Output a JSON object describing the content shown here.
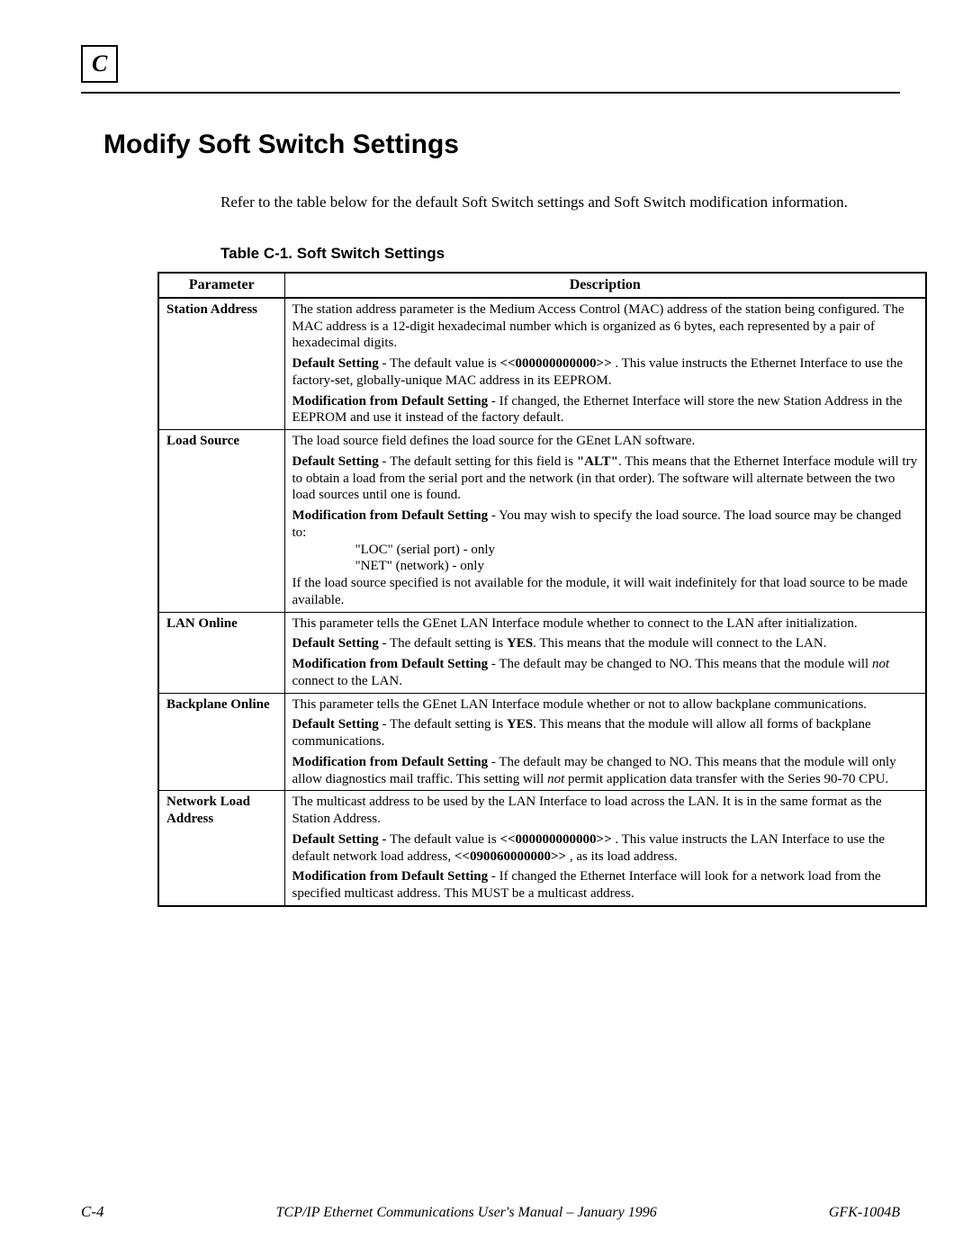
{
  "section_marker": "C",
  "main_title": "Modify Soft Switch Settings",
  "intro_text": "Refer to the table below for the default Soft Switch settings and Soft Switch modification information.",
  "table_caption": "Table C-1.  Soft Switch Settings",
  "table": {
    "columns": [
      "Parameter",
      "Description"
    ],
    "rows": [
      {
        "param": "Station Address",
        "desc": [
          {
            "plain": "The station address parameter is the Medium Access Control (MAC) address of the station being configured.  The MAC address is a 12-digit hexadecimal number which is organized as 6 bytes, each represented by a pair of hexadecimal digits."
          },
          {
            "lead_bold": "Default Setting",
            "rest": " - The default value is ",
            "code": "<<000000000000>>",
            "tail": " .  This value instructs the Ethernet Interface to use the factory-set, globally-unique MAC address in its EEPROM."
          },
          {
            "lead_bold": "Modification from Default Setting",
            "rest": " - If changed, the Ethernet Interface will store the new Station Address in the EEPROM and use it instead of the factory default."
          }
        ]
      },
      {
        "param": "Load Source",
        "desc": [
          {
            "plain": "The load source field defines the load source for the GEnet LAN software."
          },
          {
            "lead_bold": "Default Setting",
            "rest": " - The default setting for this field is ",
            "bold_quote": "\"ALT\"",
            "tail": ".  This means that the Ethernet Interface module will try to obtain a load from the serial port and the network (in that order).  The software will alternate between the two load sources until one is found."
          },
          {
            "lead_bold": "Modification from Default Setting",
            "rest": " - You may wish to specify the load source.  The load source may be changed to:",
            "list": [
              "\"LOC\" (serial port) - only",
              "\"NET\" (network) - only"
            ],
            "after_list": "If the load source specified is not available for the module, it will wait indefinitely for that load source to be made available."
          }
        ]
      },
      {
        "param": "LAN Online",
        "desc": [
          {
            "plain": "This parameter tells the GEnet LAN Interface module whether to connect to the LAN after initialization."
          },
          {
            "lead_bold": "Default Setting",
            "rest": " - The default setting is ",
            "bold2": "YES",
            "tail": ".  This means that the module will connect to the LAN."
          },
          {
            "lead_bold": "Modification from Default Setting",
            "rest": " - The default may be changed to NO.  This means that the module will ",
            "italic_word": "not",
            "tail": " connect to the LAN."
          }
        ]
      },
      {
        "param": "Backplane Online",
        "desc": [
          {
            "plain": "This parameter tells the GEnet LAN Interface module whether or not to allow backplane communications."
          },
          {
            "lead_bold": "Default Setting",
            "rest": " - The default setting is ",
            "bold2": "YES",
            "tail": ".  This means that the module will allow all forms of backplane communications."
          },
          {
            "lead_bold": "Modification from Default Setting",
            "rest": " - The default may be changed to NO.  This means that the module will only allow diagnostics mail traffic.  This setting will ",
            "italic_word": "not",
            "tail": " permit application data transfer with the Series 90-70 CPU."
          }
        ]
      },
      {
        "param": "Network Load Address",
        "desc": [
          {
            "plain": "The multicast address to be used by the LAN Interface to load across the LAN.  It is in the same format as the Station Address."
          },
          {
            "lead_bold": "Default Setting",
            "rest": " - The default value is ",
            "code": "<<000000000000>>",
            "tail1": "  .  This value instructs the LAN Interface to use the default network load address, ",
            "code2": "<<090060000000>>",
            "tail": "  , as its load address."
          },
          {
            "lead_bold": "Modification from Default Setting",
            "rest": " - If changed the Ethernet Interface will look for a network load from the specified multicast address. This MUST be a multicast address."
          }
        ]
      }
    ]
  },
  "footer": {
    "page": "C-4",
    "center": "TCP/IP Ethernet Communications  User's Manual – January 1996",
    "right": "GFK-1004B"
  },
  "colors": {
    "text": "#000000",
    "background": "#ffffff",
    "border": "#000000"
  },
  "fonts": {
    "body_family": "Times New Roman",
    "heading_family": "Arial",
    "body_size_pt": 12,
    "title_size_pt": 22,
    "caption_size_pt": 13
  }
}
